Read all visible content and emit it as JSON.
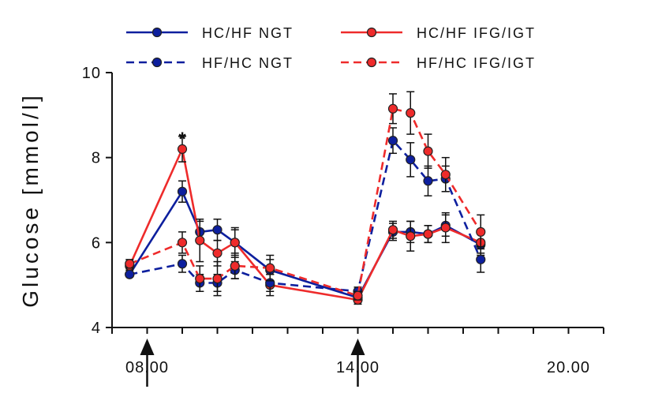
{
  "colors": {
    "blue": "#0d1f9e",
    "red": "#ee2b2b",
    "axis": "#111111"
  },
  "legend": [
    {
      "label": "HC/HF NGT",
      "color": "#0d1f9e",
      "dash": false
    },
    {
      "label": "HC/HF IFG/IGT",
      "color": "#ee2b2b",
      "dash": false
    },
    {
      "label": "HF/HC NGT",
      "color": "#0d1f9e",
      "dash": true
    },
    {
      "label": "HF/HC IFG/IGT",
      "color": "#ee2b2b",
      "dash": true
    }
  ],
  "chart_data": {
    "type": "line",
    "title": "",
    "xlabel": "",
    "ylabel": "Glucose [mmol/l]",
    "xlim": [
      7.0,
      21.0
    ],
    "ylim": [
      4,
      10
    ],
    "y_ticks": [
      4,
      6,
      8,
      10
    ],
    "x_ticks": [
      {
        "value": 8.0,
        "label": "08.00"
      },
      {
        "value": 14.0,
        "label": "14.00"
      },
      {
        "value": 20.0,
        "label": "20.00"
      }
    ],
    "meal_markers_x": [
      8.0,
      14.0
    ],
    "annotations": [
      {
        "text": "*",
        "x": 9.0,
        "y": 8.55
      }
    ],
    "grid": false,
    "legend_position": "top",
    "series": [
      {
        "name": "HC/HF NGT",
        "color": "#0d1f9e",
        "dash": false,
        "x": [
          7.5,
          9.0,
          9.5,
          10.0,
          10.5,
          11.5,
          14.0,
          15.0,
          15.5,
          16.0,
          16.5,
          17.5
        ],
        "y": [
          5.25,
          7.2,
          6.25,
          6.3,
          6.0,
          5.35,
          4.7,
          6.25,
          6.25,
          6.2,
          6.4,
          5.95
        ],
        "err": [
          0.05,
          0.25,
          0.25,
          0.25,
          0.3,
          0.25,
          0.1,
          0.2,
          0.25,
          0.2,
          0.25,
          0.25
        ]
      },
      {
        "name": "HC/HF IFG/IGT",
        "color": "#ee2b2b",
        "dash": false,
        "x": [
          7.5,
          9.0,
          9.5,
          10.0,
          10.5,
          11.5,
          14.0,
          15.0,
          15.5,
          16.0,
          16.5,
          17.5
        ],
        "y": [
          5.45,
          8.2,
          6.05,
          5.75,
          6.0,
          5.0,
          4.65,
          6.3,
          6.15,
          6.2,
          6.35,
          6.0
        ],
        "err": [
          0.1,
          0.3,
          0.5,
          0.3,
          0.35,
          0.25,
          0.1,
          0.2,
          0.35,
          0.2,
          0.35,
          0.25
        ]
      },
      {
        "name": "HF/HC NGT",
        "color": "#0d1f9e",
        "dash": true,
        "x": [
          7.5,
          9.0,
          9.5,
          10.0,
          10.5,
          11.5,
          14.0,
          15.0,
          15.5,
          16.0,
          16.5,
          17.5
        ],
        "y": [
          5.25,
          5.5,
          5.05,
          5.05,
          5.35,
          5.05,
          4.85,
          8.4,
          7.95,
          7.45,
          7.5,
          5.6
        ],
        "err": [
          0.05,
          0.2,
          0.2,
          0.2,
          0.2,
          0.2,
          0.1,
          0.3,
          0.4,
          0.35,
          0.3,
          0.3
        ]
      },
      {
        "name": "HF/HC IFG/IGT",
        "color": "#ee2b2b",
        "dash": true,
        "x": [
          7.5,
          9.0,
          9.5,
          10.0,
          10.5,
          11.5,
          14.0,
          15.0,
          15.5,
          16.0,
          16.5,
          17.5
        ],
        "y": [
          5.5,
          6.0,
          5.15,
          5.15,
          5.45,
          5.4,
          4.75,
          9.15,
          9.05,
          8.15,
          7.6,
          6.25
        ],
        "err": [
          0.1,
          0.25,
          0.3,
          0.4,
          0.3,
          0.3,
          0.1,
          0.35,
          0.5,
          0.4,
          0.4,
          0.4
        ]
      }
    ]
  }
}
